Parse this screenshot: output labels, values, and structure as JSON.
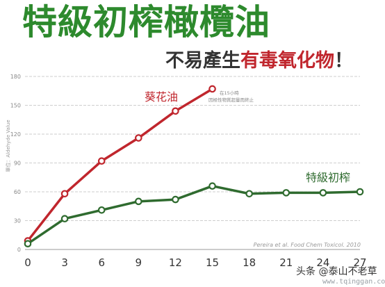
{
  "title": "特級初榨橄欖油",
  "subtitle": {
    "part1": "不易產生",
    "part2": "有毒氧化物",
    "part3": "！"
  },
  "colors": {
    "title": "#2d8a2d",
    "sunflower": "#c0262d",
    "olive": "#2f6b2f",
    "grid": "#bfbfbf"
  },
  "chart_data": {
    "type": "line",
    "ylabel": "單位：Aldehyde Value",
    "x": [
      0,
      3,
      6,
      9,
      12,
      15,
      18,
      21,
      24,
      27
    ],
    "xlim": [
      0,
      27
    ],
    "ylim": [
      0,
      180
    ],
    "yticks": [
      0,
      30,
      60,
      90,
      120,
      150,
      180
    ],
    "grid": true,
    "series": [
      {
        "name": "葵花油",
        "x": [
          0,
          3,
          6,
          9,
          12,
          15
        ],
        "values": [
          9,
          58,
          92,
          116,
          144,
          167
        ],
        "color": "#c0262d"
      },
      {
        "name": "特級初榨",
        "x": [
          0,
          3,
          6,
          9,
          12,
          15,
          18,
          21,
          24,
          27
        ],
        "values": [
          6,
          32,
          41,
          50,
          52,
          66,
          58,
          59,
          59,
          60
        ],
        "color": "#2f6b2f"
      }
    ],
    "annotations": [
      {
        "text": "在15小時",
        "line": 1
      },
      {
        "text": "因極性物質超量而終止",
        "line": 2
      }
    ],
    "source": "Pereira et al. Food Chem Toxicol. 2010"
  },
  "credit": "头条 @泰山不老草",
  "watermark": "www.tqinggan.com"
}
